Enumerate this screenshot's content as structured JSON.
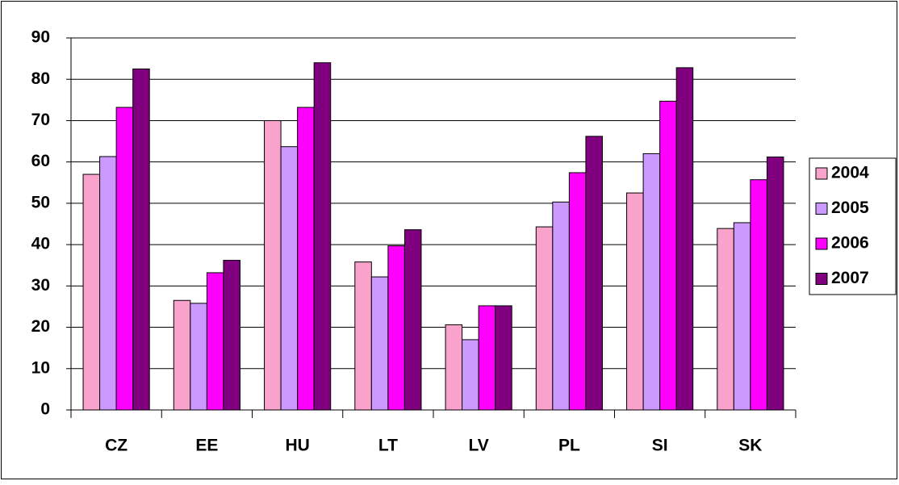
{
  "chart_data": {
    "type": "bar",
    "categories": [
      "CZ",
      "EE",
      "HU",
      "LT",
      "LV",
      "PL",
      "SI",
      "SK"
    ],
    "series": [
      {
        "name": "2004",
        "color": "#f9a3cc",
        "values": [
          57,
          26.5,
          70,
          35.8,
          20.6,
          44.3,
          52.5,
          43.9
        ]
      },
      {
        "name": "2005",
        "color": "#cc99ff",
        "values": [
          61.3,
          25.8,
          63.7,
          32.2,
          17,
          50.3,
          62,
          45.3
        ]
      },
      {
        "name": "2006",
        "color": "#ff00ff",
        "values": [
          73.2,
          33.2,
          73.2,
          39.7,
          25.2,
          57.4,
          74.7,
          55.7
        ]
      },
      {
        "name": "2007",
        "color": "#800080",
        "values": [
          82.5,
          36.2,
          84,
          43.6,
          25.2,
          66.2,
          82.8,
          61.2
        ]
      }
    ],
    "ylim": [
      0,
      90
    ],
    "yticks": [
      0,
      10,
      20,
      30,
      40,
      50,
      60,
      70,
      80,
      90
    ],
    "grid": true,
    "legend": "right"
  }
}
